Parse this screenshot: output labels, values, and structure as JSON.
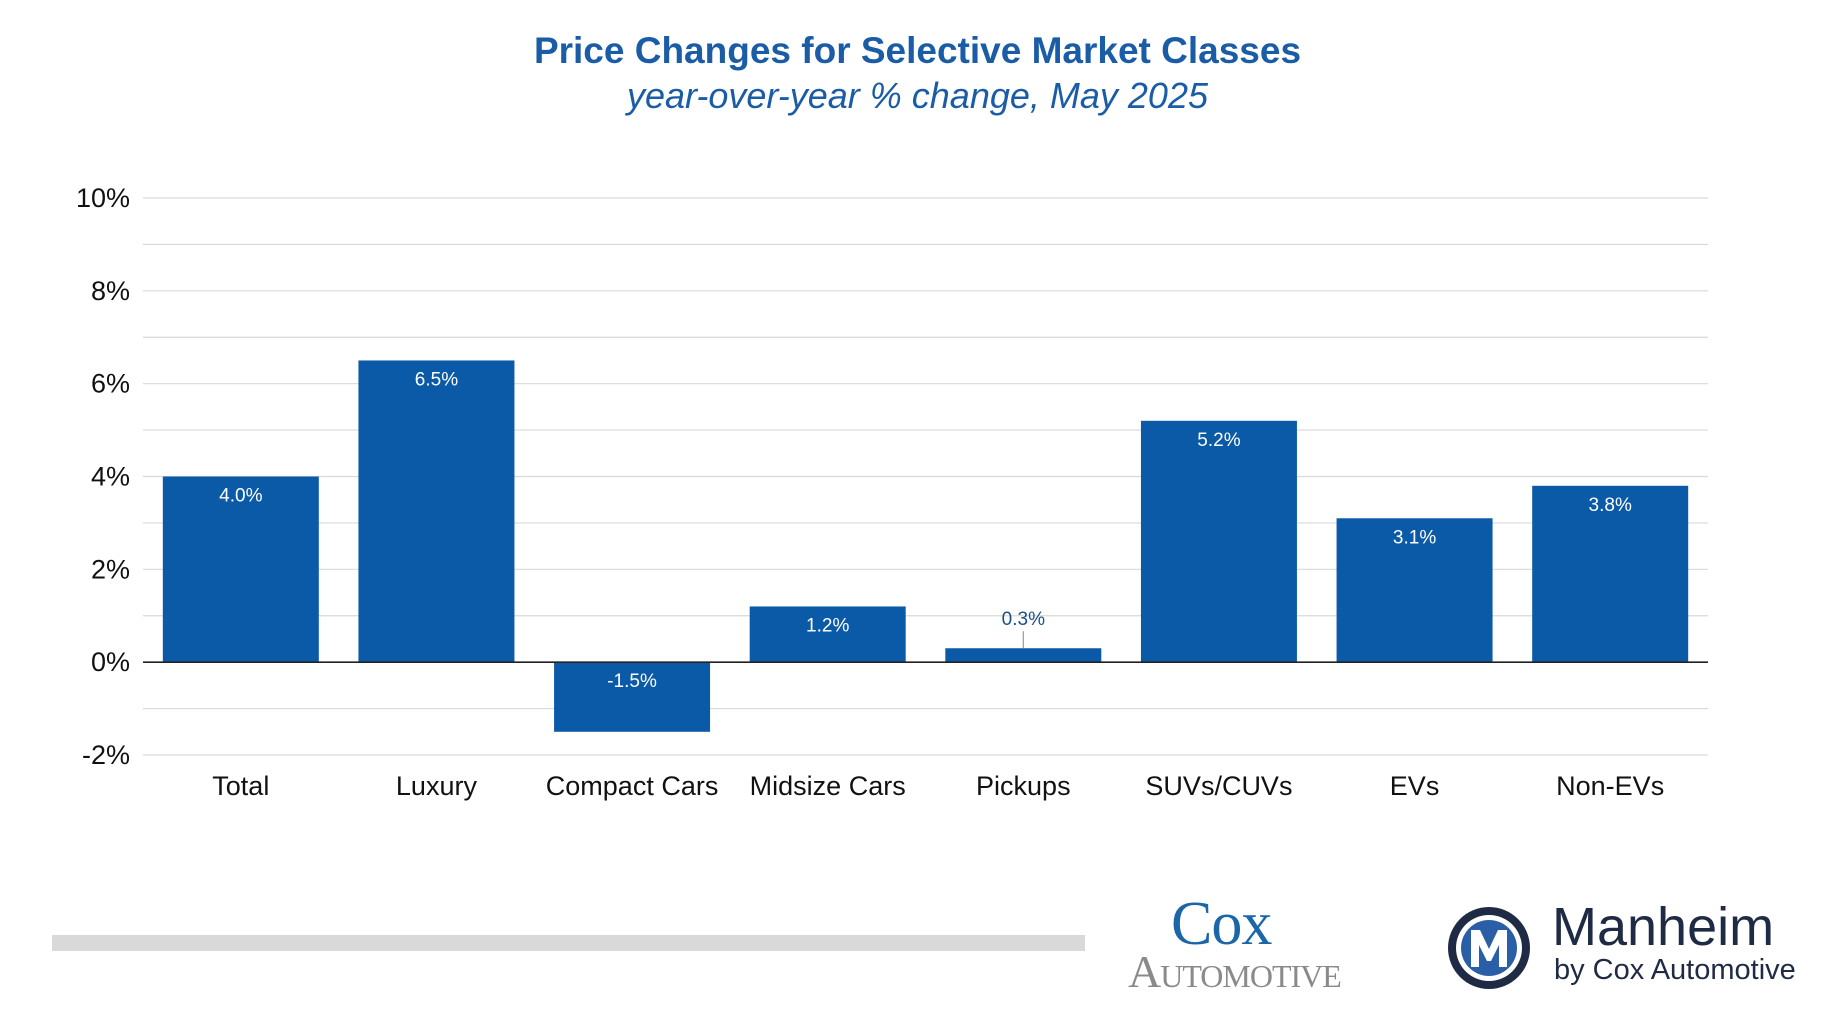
{
  "chart_data": {
    "type": "bar",
    "title": "Price Changes for Selective Market Classes",
    "subtitle": "year-over-year % change, May 2025",
    "categories": [
      "Total",
      "Luxury",
      "Compact Cars",
      "Midsize Cars",
      "Pickups",
      "SUVs/CUVs",
      "EVs",
      "Non-EVs"
    ],
    "values": [
      4.0,
      6.5,
      -1.5,
      1.2,
      0.3,
      5.2,
      3.1,
      3.8
    ],
    "value_labels": [
      "4.0%",
      "6.5%",
      "-1.5%",
      "1.2%",
      "0.3%",
      "5.2%",
      "3.1%",
      "3.8%"
    ],
    "ylim": [
      -2,
      10
    ],
    "yticks": [
      -2,
      0,
      2,
      4,
      6,
      8,
      10
    ],
    "ytick_labels": [
      "-2%",
      "0%",
      "2%",
      "4%",
      "6%",
      "8%",
      "10%"
    ],
    "minor_gridlines": [
      -1,
      1,
      3,
      5,
      7,
      9
    ],
    "xlabel": "",
    "ylabel": "",
    "grid": true,
    "bar_color": "#0b5aa7"
  },
  "logos": {
    "cox": {
      "line1": "Cox",
      "line2": "Automotive"
    },
    "manheim": {
      "name": "Manheim",
      "tagline": "by Cox Automotive"
    }
  },
  "colors": {
    "title": "#1a5da6",
    "bar": "#0b5aa7",
    "grid": "#d9d9d9",
    "footer_bar": "#d9d9d9",
    "cox_blue": "#1b66a8",
    "cox_gray": "#8a8a8a",
    "manheim_navy": "#1f2a44"
  }
}
